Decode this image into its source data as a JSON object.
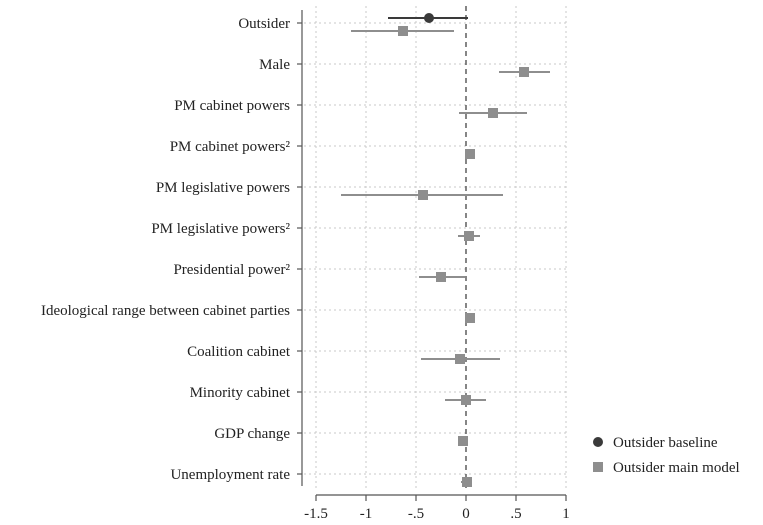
{
  "chart_data": {
    "type": "scatter",
    "subtype": "coefficient-plot",
    "title": "",
    "xlabel": "",
    "ylabel": "",
    "xlim": [
      -1.5,
      1
    ],
    "x_ticks": [
      {
        "value": -1.5,
        "label": "-1.5"
      },
      {
        "value": -1,
        "label": "-1"
      },
      {
        "value": -0.5,
        "label": "-.5"
      },
      {
        "value": 0,
        "label": "0"
      },
      {
        "value": 0.5,
        "label": ".5"
      },
      {
        "value": 1,
        "label": "1"
      }
    ],
    "reference_line": 0,
    "grid": true,
    "legend_position": "bottom-right",
    "categories": [
      "Outsider",
      "Male",
      "PM cabinet powers",
      "PM cabinet powers²",
      "PM legislative powers",
      "PM legislative powers²",
      "Presidential power²",
      "Ideological range between cabinet parties",
      "Coalition cabinet",
      "Minority cabinet",
      "GDP change",
      "Unemployment rate"
    ],
    "series": [
      {
        "name": "Outsider baseline",
        "marker": "circle",
        "color": "#3a3a3a",
        "points": [
          {
            "category": "Outsider",
            "estimate": -0.37,
            "ci_low": -0.78,
            "ci_high": 0.02
          }
        ]
      },
      {
        "name": "Outsider main model",
        "marker": "square",
        "color": "#8e8e8e",
        "points": [
          {
            "category": "Outsider",
            "estimate": -0.63,
            "ci_low": -1.15,
            "ci_high": -0.12
          },
          {
            "category": "Male",
            "estimate": 0.58,
            "ci_low": 0.33,
            "ci_high": 0.84
          },
          {
            "category": "PM cabinet powers",
            "estimate": 0.27,
            "ci_low": -0.07,
            "ci_high": 0.61
          },
          {
            "category": "PM cabinet powers²",
            "estimate": 0.04,
            "ci_low": 0.0,
            "ci_high": 0.08
          },
          {
            "category": "PM legislative powers",
            "estimate": -0.43,
            "ci_low": -1.25,
            "ci_high": 0.37
          },
          {
            "category": "PM legislative powers²",
            "estimate": 0.03,
            "ci_low": -0.08,
            "ci_high": 0.14
          },
          {
            "category": "Presidential power²",
            "estimate": -0.25,
            "ci_low": -0.47,
            "ci_high": -0.01
          },
          {
            "category": "Ideological range between cabinet parties",
            "estimate": 0.04,
            "ci_low": 0.01,
            "ci_high": 0.07
          },
          {
            "category": "Coalition cabinet",
            "estimate": -0.06,
            "ci_low": -0.45,
            "ci_high": 0.34
          },
          {
            "category": "Minority cabinet",
            "estimate": 0.0,
            "ci_low": -0.21,
            "ci_high": 0.2
          },
          {
            "category": "GDP change",
            "estimate": -0.03,
            "ci_low": -0.07,
            "ci_high": 0.01
          },
          {
            "category": "Unemployment rate",
            "estimate": 0.01,
            "ci_low": -0.05,
            "ci_high": 0.06
          }
        ]
      }
    ]
  }
}
